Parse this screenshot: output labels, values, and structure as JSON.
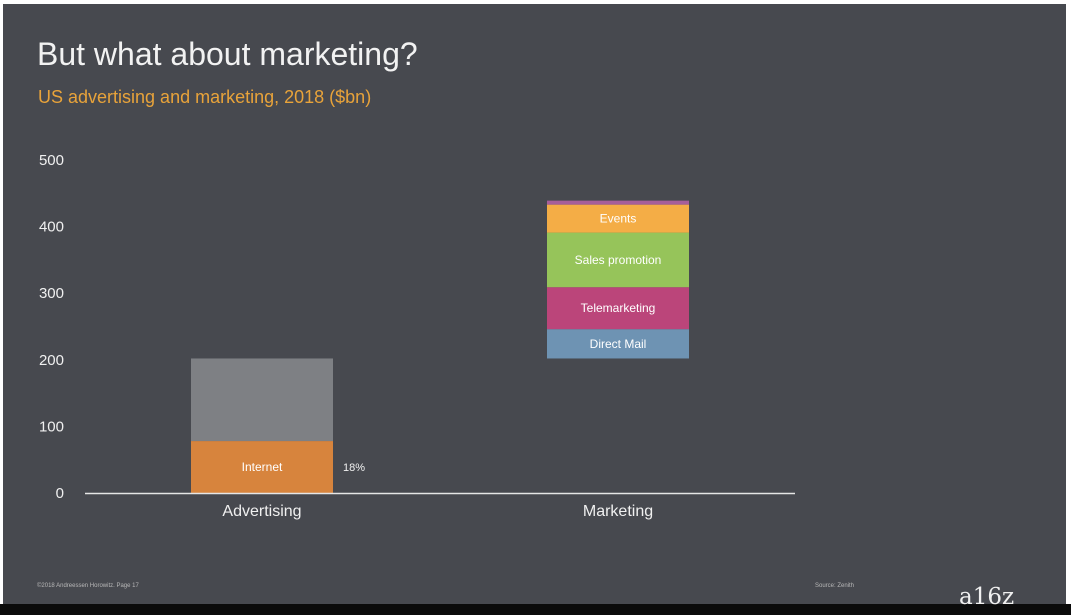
{
  "slide": {
    "title": "But what about marketing?",
    "subtitle": "US advertising and marketing, 2018 ($bn)",
    "footer_left": "©2018 Andreessen Horowitz. Page 17",
    "footer_source": "Source: Zenith",
    "logo_text": "a16z"
  },
  "chart_data": {
    "type": "bar",
    "stacked": true,
    "categories": [
      "Advertising",
      "Marketing"
    ],
    "ylim": [
      0,
      500
    ],
    "yticks": [
      0,
      100,
      200,
      300,
      400,
      500
    ],
    "grid": false,
    "series": [
      {
        "name": "Internet",
        "color": "#d7843d",
        "segments": [
          {
            "category": "Advertising",
            "from": 0,
            "to": 78
          }
        ]
      },
      {
        "name": "",
        "color": "#7e8084",
        "segments": [
          {
            "category": "Advertising",
            "from": 78,
            "to": 202
          }
        ]
      },
      {
        "name": "Direct Mail",
        "color": "#6e93b3",
        "segments": [
          {
            "category": "Marketing",
            "from": 202,
            "to": 246
          }
        ]
      },
      {
        "name": "Telemarketing",
        "color": "#bb457a",
        "segments": [
          {
            "category": "Marketing",
            "from": 246,
            "to": 309
          }
        ]
      },
      {
        "name": "Sales promotion",
        "color": "#96c45a",
        "segments": [
          {
            "category": "Marketing",
            "from": 309,
            "to": 391
          }
        ]
      },
      {
        "name": "Events",
        "color": "#f4ad46",
        "segments": [
          {
            "category": "Marketing",
            "from": 391,
            "to": 433
          }
        ]
      },
      {
        "name": "",
        "color": "#a65e9a",
        "segments": [
          {
            "category": "Marketing",
            "from": 433,
            "to": 439
          }
        ]
      }
    ],
    "annotations": [
      {
        "text": "18%",
        "category": "Advertising",
        "y": 39
      }
    ]
  }
}
